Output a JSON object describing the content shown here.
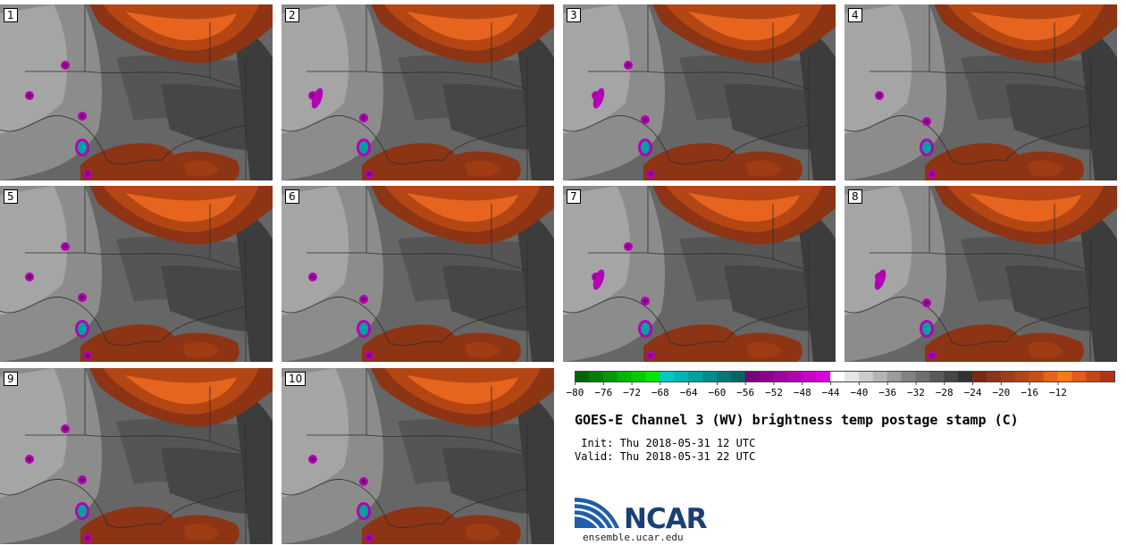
{
  "panels": [
    "1",
    "2",
    "3",
    "4",
    "5",
    "6",
    "7",
    "8",
    "9",
    "10"
  ],
  "colorbar": {
    "ticks": [
      "−80",
      "−76",
      "−72",
      "−68",
      "−64",
      "−60",
      "−56",
      "−52",
      "−48",
      "−44",
      "−40",
      "−36",
      "−32",
      "−28",
      "−24",
      "−20",
      "−16",
      "−12"
    ],
    "colors": [
      "#006400",
      "#007f00",
      "#009a00",
      "#00b400",
      "#00cc00",
      "#00e600",
      "#00c8c8",
      "#00b4b4",
      "#00a0a0",
      "#008c8c",
      "#007878",
      "#006464",
      "#780078",
      "#8c008c",
      "#a000a0",
      "#b400b4",
      "#c800c8",
      "#dc00dc",
      "#ffffff",
      "#e6e6e6",
      "#cdcdcd",
      "#b4b4b4",
      "#9b9b9b",
      "#828282",
      "#6e6e6e",
      "#5a5a5a",
      "#464646",
      "#323232",
      "#7a2a10",
      "#8c3414",
      "#a03c14",
      "#b44614",
      "#c85014",
      "#e66414",
      "#ff7814",
      "#e65a14",
      "#c84614",
      "#b43214"
    ]
  },
  "title": "GOES-E Channel 3 (WV) brightness temp postage stamp (C)",
  "init_text": " Init: Thu 2018-05-31 12 UTC",
  "valid_text": "Valid: Thu 2018-05-31 22 UTC",
  "logo_text": "NCAR",
  "url": "ensemble.ucar.edu"
}
